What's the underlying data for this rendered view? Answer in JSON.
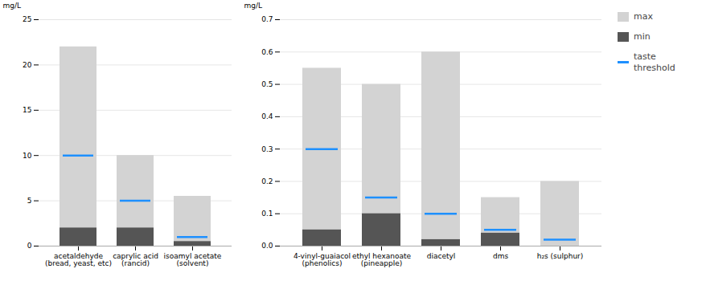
{
  "chart_data": [
    {
      "type": "bar",
      "categories": [
        "acetaldehyde\n(bread, yeast, etc)",
        "caprylic acid\n(rancid)",
        "isoamyl acetate\n(solvent)"
      ],
      "series": [
        {
          "name": "max",
          "type": "bar",
          "color": "#d3d3d3",
          "values": [
            22.0,
            10.0,
            5.5
          ]
        },
        {
          "name": "min",
          "type": "bar",
          "color": "#555555",
          "values": [
            2.0,
            2.0,
            0.5
          ]
        },
        {
          "name": "taste\nthreshold",
          "type": "tick",
          "color": "#1e90ff",
          "values": [
            10.0,
            5.0,
            1.0
          ]
        }
      ],
      "stacked": false,
      "ylim": [
        0,
        25
      ],
      "yticks": [
        0,
        5,
        10,
        15,
        20,
        25
      ],
      "y_label": "mg/L",
      "grid": true
    },
    {
      "type": "bar",
      "categories": [
        "4-vinyl-guaiacol\n(phenolics)",
        "ethyl hexanoate\n(pineapple)",
        "diacetyl",
        "dms",
        "h₂s (sulphur)"
      ],
      "series": [
        {
          "name": "max",
          "type": "bar",
          "color": "#d3d3d3",
          "values": [
            0.55,
            0.5,
            0.6,
            0.15,
            0.2
          ]
        },
        {
          "name": "min",
          "type": "bar",
          "color": "#555555",
          "values": [
            0.05,
            0.1,
            0.02,
            0.04,
            0.0
          ]
        },
        {
          "name": "taste\nthreshold",
          "type": "tick",
          "color": "#1e90ff",
          "values": [
            0.3,
            0.15,
            0.1,
            0.05,
            0.02
          ]
        }
      ],
      "stacked": false,
      "ylim": [
        0,
        0.7
      ],
      "yticks": [
        {
          "value": 0,
          "label": "0.0"
        },
        0.1,
        0.2,
        0.3,
        0.4,
        0.5,
        0.6,
        0.7
      ],
      "y_label": "mg/L",
      "grid": true,
      "legend": "right"
    }
  ]
}
